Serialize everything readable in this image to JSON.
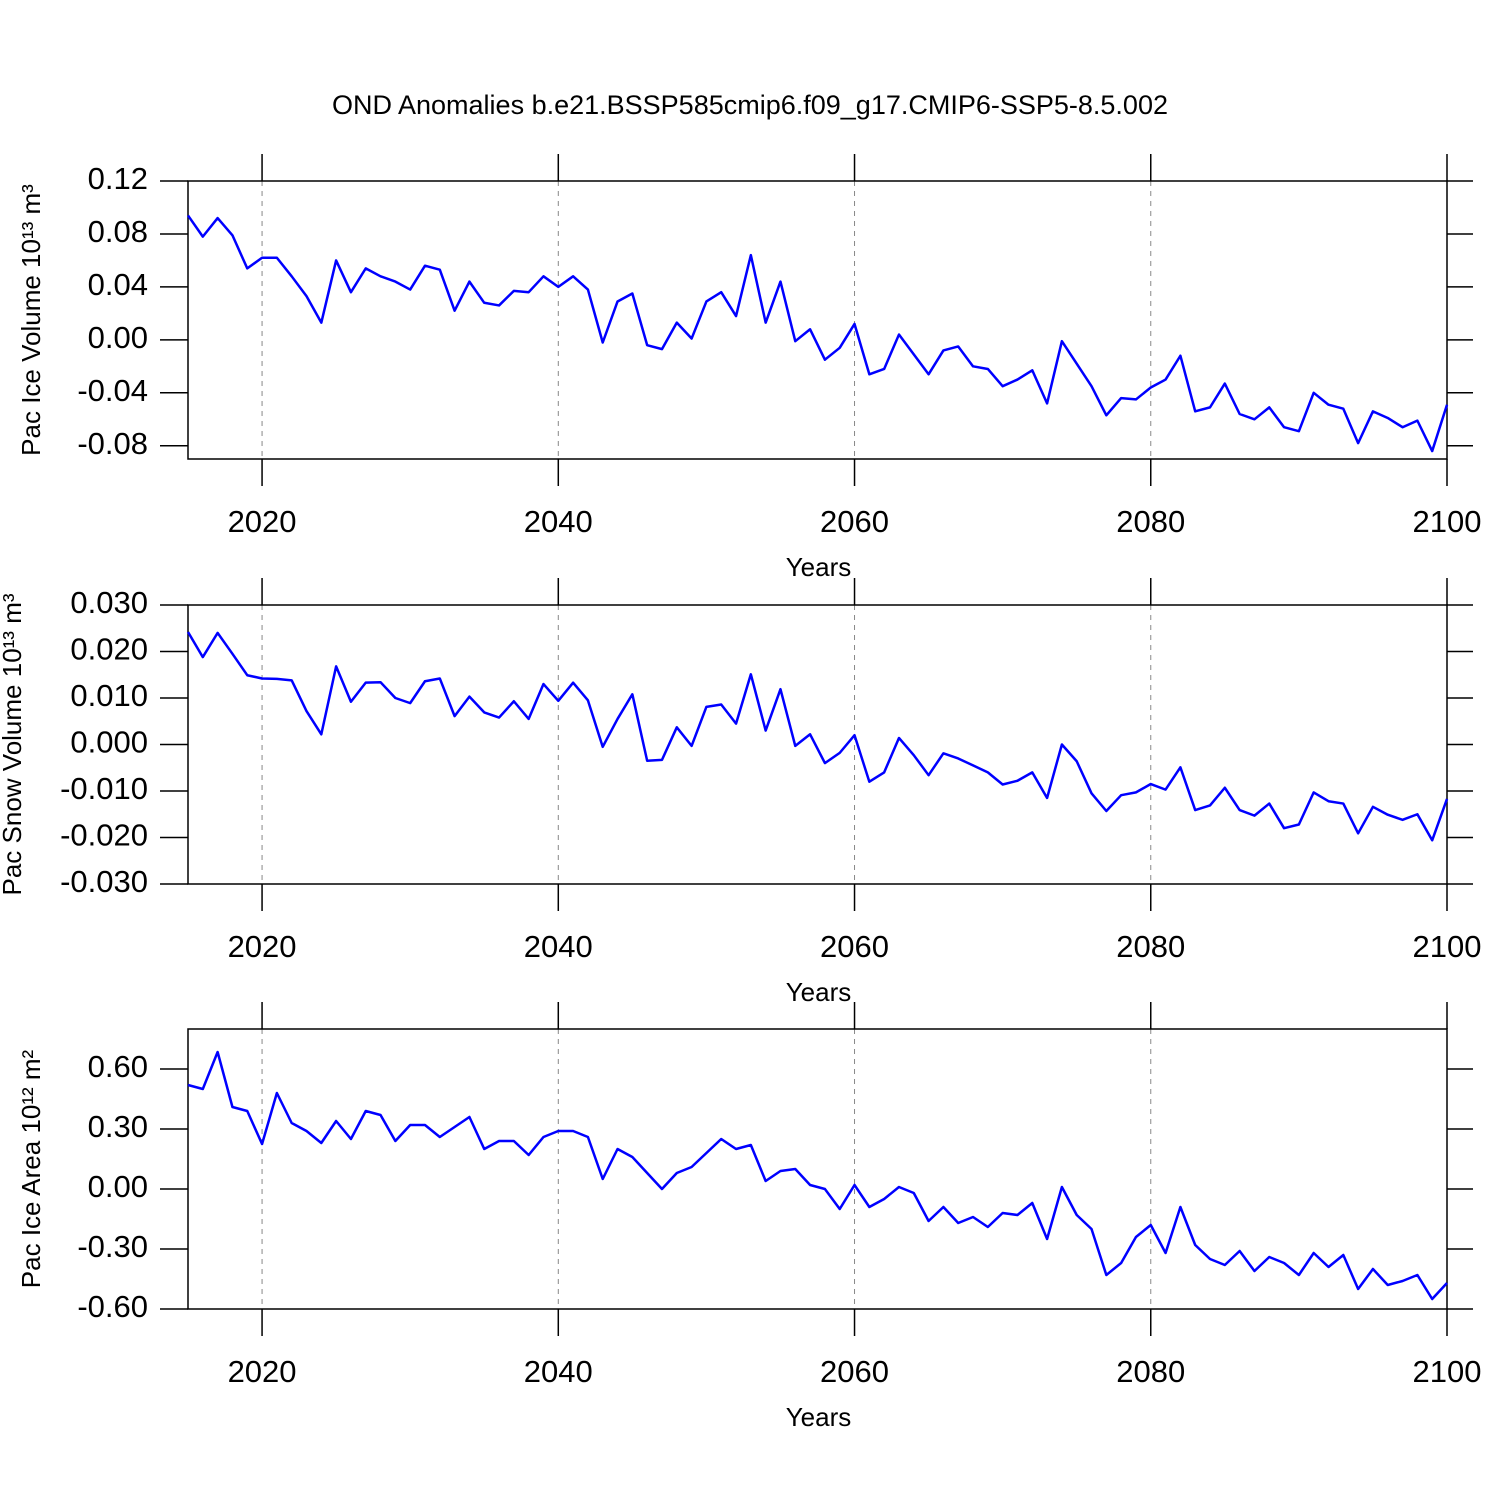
{
  "chart_data": [
    {
      "type": "line",
      "title": "OND Anomalies b.e21.BSSP585cmip6.f09_g17.CMIP6-SSP5-8.5.002",
      "xlabel": "Years",
      "ylabel": "Pac Ice Volume 10¹³ m³",
      "x": [
        2015,
        2016,
        2017,
        2018,
        2019,
        2020,
        2021,
        2022,
        2023,
        2024,
        2025,
        2026,
        2027,
        2028,
        2029,
        2030,
        2031,
        2032,
        2033,
        2034,
        2035,
        2036,
        2037,
        2038,
        2039,
        2040,
        2041,
        2042,
        2043,
        2044,
        2045,
        2046,
        2047,
        2048,
        2049,
        2050,
        2051,
        2052,
        2053,
        2054,
        2055,
        2056,
        2057,
        2058,
        2059,
        2060,
        2061,
        2062,
        2063,
        2064,
        2065,
        2066,
        2067,
        2068,
        2069,
        2070,
        2071,
        2072,
        2073,
        2074,
        2075,
        2076,
        2077,
        2078,
        2079,
        2080,
        2081,
        2082,
        2083,
        2084,
        2085,
        2086,
        2087,
        2088,
        2089,
        2090,
        2091,
        2092,
        2093,
        2094,
        2095,
        2096,
        2097,
        2098,
        2099,
        2100
      ],
      "series": [
        {
          "color": "#0000ff",
          "values": [
            0.094,
            0.078,
            0.092,
            0.079,
            0.054,
            0.062,
            0.062,
            0.048,
            0.033,
            0.013,
            0.06,
            0.036,
            0.054,
            0.048,
            0.044,
            0.038,
            0.056,
            0.053,
            0.022,
            0.044,
            0.028,
            0.026,
            0.037,
            0.036,
            0.048,
            0.04,
            0.048,
            0.038,
            -0.002,
            0.029,
            0.035,
            -0.004,
            -0.007,
            0.013,
            0.001,
            0.029,
            0.036,
            0.018,
            0.064,
            0.013,
            0.044,
            -0.001,
            0.008,
            -0.015,
            -0.006,
            0.012,
            -0.026,
            -0.022,
            0.004,
            -0.011,
            -0.026,
            -0.008,
            -0.005,
            -0.02,
            -0.022,
            -0.035,
            -0.03,
            -0.023,
            -0.048,
            -0.001,
            -0.018,
            -0.035,
            -0.057,
            -0.044,
            -0.045,
            -0.036,
            -0.03,
            -0.012,
            -0.054,
            -0.051,
            -0.033,
            -0.056,
            -0.06,
            -0.051,
            -0.066,
            -0.069,
            -0.04,
            -0.049,
            -0.052,
            -0.078,
            -0.054,
            -0.059,
            -0.066,
            -0.061,
            -0.084,
            -0.049
          ]
        }
      ],
      "xlim": [
        2015,
        2100
      ],
      "xticks": [
        2020,
        2040,
        2060,
        2080,
        2100
      ],
      "ylim": [
        -0.09,
        0.12
      ],
      "yticks": [
        0.12,
        0.08,
        0.04,
        {
          "value": 0,
          "label": "0.00"
        },
        -0.04,
        -0.08
      ],
      "grid": true
    },
    {
      "type": "line",
      "xlabel": "Years",
      "ylabel": "Pac Snow Volume 10¹³ m³",
      "x": [
        2015,
        2016,
        2017,
        2018,
        2019,
        2020,
        2021,
        2022,
        2023,
        2024,
        2025,
        2026,
        2027,
        2028,
        2029,
        2030,
        2031,
        2032,
        2033,
        2034,
        2035,
        2036,
        2037,
        2038,
        2039,
        2040,
        2041,
        2042,
        2043,
        2044,
        2045,
        2046,
        2047,
        2048,
        2049,
        2050,
        2051,
        2052,
        2053,
        2054,
        2055,
        2056,
        2057,
        2058,
        2059,
        2060,
        2061,
        2062,
        2063,
        2064,
        2065,
        2066,
        2067,
        2068,
        2069,
        2070,
        2071,
        2072,
        2073,
        2074,
        2075,
        2076,
        2077,
        2078,
        2079,
        2080,
        2081,
        2082,
        2083,
        2084,
        2085,
        2086,
        2087,
        2088,
        2089,
        2090,
        2091,
        2092,
        2093,
        2094,
        2095,
        2096,
        2097,
        2098,
        2099,
        2100
      ],
      "series": [
        {
          "color": "#0000ff",
          "values": [
            0.0242,
            0.0188,
            0.024,
            0.0195,
            0.0149,
            0.0142,
            0.0141,
            0.0138,
            0.0072,
            0.0022,
            0.0168,
            0.0092,
            0.0133,
            0.0134,
            0.01,
            0.0089,
            0.0136,
            0.0142,
            0.0061,
            0.0103,
            0.0069,
            0.0058,
            0.0093,
            0.0055,
            0.013,
            0.0094,
            0.0133,
            0.0095,
            -0.0005,
            0.0055,
            0.0108,
            -0.0035,
            -0.0033,
            0.0037,
            -0.0003,
            0.0081,
            0.0086,
            0.0045,
            0.0151,
            0.003,
            0.0119,
            -0.0003,
            0.0022,
            -0.004,
            -0.0018,
            0.002,
            -0.008,
            -0.006,
            0.0014,
            -0.0023,
            -0.0066,
            -0.0019,
            -0.003,
            -0.0045,
            -0.006,
            -0.0086,
            -0.0078,
            -0.006,
            -0.0115,
            0.0,
            -0.0036,
            -0.0105,
            -0.0143,
            -0.0109,
            -0.0103,
            -0.0085,
            -0.0097,
            -0.0049,
            -0.0141,
            -0.0131,
            -0.0093,
            -0.0141,
            -0.0153,
            -0.0127,
            -0.018,
            -0.0172,
            -0.0103,
            -0.0122,
            -0.0127,
            -0.0191,
            -0.0134,
            -0.0151,
            -0.0162,
            -0.015,
            -0.0206,
            -0.0117
          ]
        }
      ],
      "xlim": [
        2015,
        2100
      ],
      "xticks": [
        2020,
        2040,
        2060,
        2080,
        2100
      ],
      "ylim": [
        -0.03,
        0.03
      ],
      "yticks": [
        {
          "value": 0.03,
          "label": "0.030"
        },
        {
          "value": 0.02,
          "label": "0.020"
        },
        {
          "value": 0.01,
          "label": "0.010"
        },
        {
          "value": 0,
          "label": "0.000"
        },
        {
          "value": -0.01,
          "label": "-0.010"
        },
        {
          "value": -0.02,
          "label": "-0.020"
        },
        {
          "value": -0.03,
          "label": "-0.030"
        }
      ],
      "grid": true
    },
    {
      "type": "line",
      "xlabel": "Years",
      "ylabel": "Pac Ice Area 10¹² m²",
      "x": [
        2015,
        2016,
        2017,
        2018,
        2019,
        2020,
        2021,
        2022,
        2023,
        2024,
        2025,
        2026,
        2027,
        2028,
        2029,
        2030,
        2031,
        2032,
        2033,
        2034,
        2035,
        2036,
        2037,
        2038,
        2039,
        2040,
        2041,
        2042,
        2043,
        2044,
        2045,
        2046,
        2047,
        2048,
        2049,
        2050,
        2051,
        2052,
        2053,
        2054,
        2055,
        2056,
        2057,
        2058,
        2059,
        2060,
        2061,
        2062,
        2063,
        2064,
        2065,
        2066,
        2067,
        2068,
        2069,
        2070,
        2071,
        2072,
        2073,
        2074,
        2075,
        2076,
        2077,
        2078,
        2079,
        2080,
        2081,
        2082,
        2083,
        2084,
        2085,
        2086,
        2087,
        2088,
        2089,
        2090,
        2091,
        2092,
        2093,
        2094,
        2095,
        2096,
        2097,
        2098,
        2099,
        2100
      ],
      "series": [
        {
          "color": "#0000ff",
          "values": [
            0.52,
            0.5,
            0.685,
            0.41,
            0.39,
            0.225,
            0.48,
            0.33,
            0.29,
            0.23,
            0.34,
            0.25,
            0.39,
            0.37,
            0.24,
            0.32,
            0.32,
            0.26,
            0.31,
            0.36,
            0.2,
            0.24,
            0.24,
            0.17,
            0.26,
            0.29,
            0.29,
            0.26,
            0.05,
            0.2,
            0.16,
            0.08,
            0.0,
            0.08,
            0.11,
            0.18,
            0.25,
            0.2,
            0.22,
            0.04,
            0.09,
            0.1,
            0.02,
            0.0,
            -0.1,
            0.02,
            -0.09,
            -0.05,
            0.01,
            -0.02,
            -0.16,
            -0.09,
            -0.17,
            -0.14,
            -0.19,
            -0.12,
            -0.13,
            -0.07,
            -0.25,
            0.01,
            -0.13,
            -0.2,
            -0.43,
            -0.37,
            -0.24,
            -0.18,
            -0.32,
            -0.09,
            -0.28,
            -0.35,
            -0.38,
            -0.31,
            -0.41,
            -0.34,
            -0.37,
            -0.43,
            -0.32,
            -0.39,
            -0.33,
            -0.5,
            -0.4,
            -0.48,
            -0.46,
            -0.43,
            -0.55,
            -0.47
          ]
        }
      ],
      "xlim": [
        2015,
        2100
      ],
      "xticks": [
        2020,
        2040,
        2060,
        2080,
        2100
      ],
      "ylim": [
        -0.6,
        0.8
      ],
      "yticks": [
        {
          "value": 0.6,
          "label": "0.60"
        },
        {
          "value": 0.3,
          "label": "0.30"
        },
        {
          "value": 0,
          "label": "0.00"
        },
        {
          "value": -0.3,
          "label": "-0.30"
        },
        {
          "value": -0.6,
          "label": "-0.60"
        }
      ],
      "grid": true
    }
  ]
}
